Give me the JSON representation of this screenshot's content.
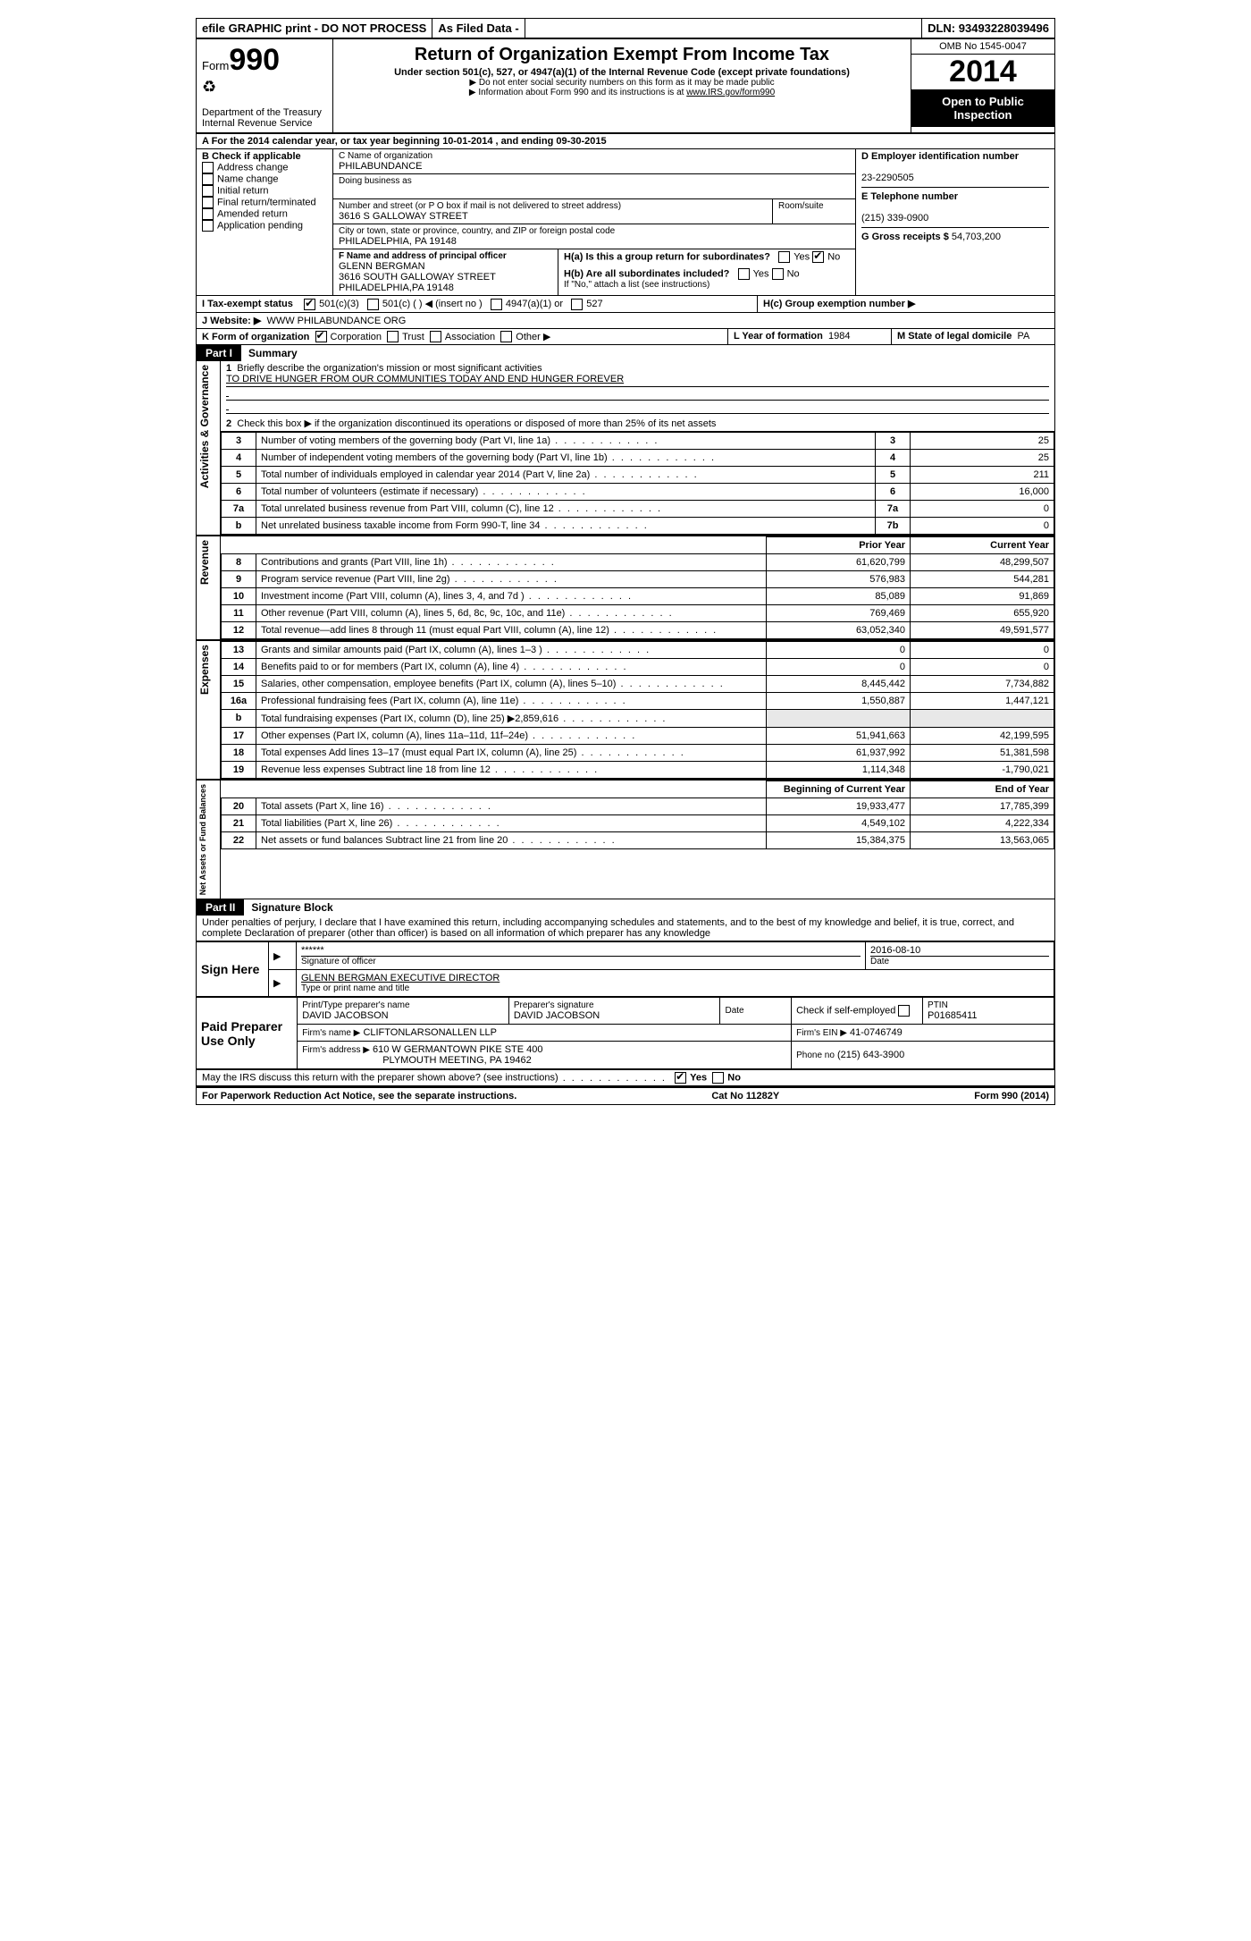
{
  "topbar": {
    "efile": "efile GRAPHIC print - DO NOT PROCESS",
    "asfiled": "As Filed Data -",
    "dln_label": "DLN:",
    "dln": "93493228039496"
  },
  "header": {
    "form_word": "Form",
    "form_num": "990",
    "dept1": "Department of the Treasury",
    "dept2": "Internal Revenue Service",
    "title": "Return of Organization Exempt From Income Tax",
    "sub": "Under section 501(c), 527, or 4947(a)(1) of the Internal Revenue Code (except private foundations)",
    "note1": "▶ Do not enter social security numbers on this form as it may be made public",
    "note2": "▶ Information about Form 990 and its instructions is at ",
    "link": "www.IRS.gov/form990",
    "omb": "OMB No 1545-0047",
    "year": "2014",
    "open": "Open to Public Inspection"
  },
  "secA": "A  For the 2014 calendar year, or tax year beginning 10-01-2014     , and ending 09-30-2015",
  "colB": {
    "title": "B  Check if applicable",
    "items": [
      "Address change",
      "Name change",
      "Initial return",
      "Final return/terminated",
      "Amended return",
      "Application pending"
    ]
  },
  "colC": {
    "name_label": "C Name of organization",
    "name": "PHILABUNDANCE",
    "dba_label": "Doing business as",
    "street_label": "Number and street (or P O  box if mail is not delivered to street address)",
    "room_label": "Room/suite",
    "street": "3616 S GALLOWAY STREET",
    "city_label": "City or town, state or province, country, and ZIP or foreign postal code",
    "city": "PHILADELPHIA, PA  19148",
    "f_label": "F   Name and address of principal officer",
    "f_name": "GLENN BERGMAN",
    "f_street": "3616 SOUTH GALLOWAY STREET",
    "f_city": "PHILADELPHIA,PA  19148"
  },
  "colD": {
    "ein_label": "D Employer identification number",
    "ein": "23-2290505",
    "phone_label": "E Telephone number",
    "phone": "(215) 339-0900",
    "gross_label": "G Gross receipts $",
    "gross": "54,703,200"
  },
  "secH": {
    "ha": "H(a)  Is this a group return for subordinates?",
    "hb": "H(b)  Are all subordinates included?",
    "hb_note": "If \"No,\" attach a list  (see instructions)",
    "hc": "H(c)   Group exemption number ▶",
    "yes": "Yes",
    "no": "No"
  },
  "secI": {
    "label": "I   Tax-exempt status",
    "opts": [
      "501(c)(3)",
      "501(c) (   ) ◀ (insert no )",
      "4947(a)(1) or",
      "527"
    ]
  },
  "secJ": {
    "label": "J   Website: ▶",
    "val": "WWW PHILABUNDANCE ORG"
  },
  "secK": {
    "label": "K Form of organization",
    "opts": [
      "Corporation",
      "Trust",
      "Association",
      "Other ▶"
    ],
    "l_label": "L Year of formation",
    "l_val": "1984",
    "m_label": "M State of legal domicile",
    "m_val": "PA"
  },
  "part1": {
    "hdr": "Part I",
    "title": "Summary",
    "line1": "Briefly describe the organization's mission or most significant activities",
    "mission": "TO DRIVE HUNGER FROM OUR COMMUNITIES TODAY AND END HUNGER FOREVER",
    "line2": "Check this box ▶      if the organization discontinued its operations or disposed of more than 25% of its net assets",
    "gov_side": "Activities & Governance",
    "rev_side": "Revenue",
    "exp_side": "Expenses",
    "net_side": "Net Assets or Fund Balances",
    "rows_gov": [
      {
        "n": "3",
        "t": "Number of voting members of the governing body (Part VI, line 1a)",
        "k": "3",
        "v": "25"
      },
      {
        "n": "4",
        "t": "Number of independent voting members of the governing body (Part VI, line 1b)",
        "k": "4",
        "v": "25"
      },
      {
        "n": "5",
        "t": "Total number of individuals employed in calendar year 2014 (Part V, line 2a)",
        "k": "5",
        "v": "211"
      },
      {
        "n": "6",
        "t": "Total number of volunteers (estimate if necessary)",
        "k": "6",
        "v": "16,000"
      },
      {
        "n": "7a",
        "t": "Total unrelated business revenue from Part VIII, column (C), line 12",
        "k": "7a",
        "v": "0"
      },
      {
        "n": "b",
        "t": "Net unrelated business taxable income from Form 990-T, line 34",
        "k": "7b",
        "v": "0"
      }
    ],
    "col_prior": "Prior Year",
    "col_current": "Current Year",
    "rows_rev": [
      {
        "n": "8",
        "t": "Contributions and grants (Part VIII, line 1h)",
        "p": "61,620,799",
        "c": "48,299,507"
      },
      {
        "n": "9",
        "t": "Program service revenue (Part VIII, line 2g)",
        "p": "576,983",
        "c": "544,281"
      },
      {
        "n": "10",
        "t": "Investment income (Part VIII, column (A), lines 3, 4, and 7d )",
        "p": "85,089",
        "c": "91,869"
      },
      {
        "n": "11",
        "t": "Other revenue (Part VIII, column (A), lines 5, 6d, 8c, 9c, 10c, and 11e)",
        "p": "769,469",
        "c": "655,920"
      },
      {
        "n": "12",
        "t": "Total revenue—add lines 8 through 11 (must equal Part VIII, column (A), line 12)",
        "p": "63,052,340",
        "c": "49,591,577"
      }
    ],
    "rows_exp": [
      {
        "n": "13",
        "t": "Grants and similar amounts paid (Part IX, column (A), lines 1–3 )",
        "p": "0",
        "c": "0"
      },
      {
        "n": "14",
        "t": "Benefits paid to or for members (Part IX, column (A), line 4)",
        "p": "0",
        "c": "0"
      },
      {
        "n": "15",
        "t": "Salaries, other compensation, employee benefits (Part IX, column (A), lines 5–10)",
        "p": "8,445,442",
        "c": "7,734,882"
      },
      {
        "n": "16a",
        "t": "Professional fundraising fees (Part IX, column (A), line 11e)",
        "p": "1,550,887",
        "c": "1,447,121"
      },
      {
        "n": "b",
        "t": "Total fundraising expenses (Part IX, column (D), line 25) ▶2,859,616",
        "p": "",
        "c": ""
      },
      {
        "n": "17",
        "t": "Other expenses (Part IX, column (A), lines 11a–11d, 11f–24e)",
        "p": "51,941,663",
        "c": "42,199,595"
      },
      {
        "n": "18",
        "t": "Total expenses  Add lines 13–17 (must equal Part IX, column (A), line 25)",
        "p": "61,937,992",
        "c": "51,381,598"
      },
      {
        "n": "19",
        "t": "Revenue less expenses  Subtract line 18 from line 12",
        "p": "1,114,348",
        "c": "-1,790,021"
      }
    ],
    "col_beg": "Beginning of Current Year",
    "col_end": "End of Year",
    "rows_net": [
      {
        "n": "20",
        "t": "Total assets (Part X, line 16)",
        "p": "19,933,477",
        "c": "17,785,399"
      },
      {
        "n": "21",
        "t": "Total liabilities (Part X, line 26)",
        "p": "4,549,102",
        "c": "4,222,334"
      },
      {
        "n": "22",
        "t": "Net assets or fund balances  Subtract line 21 from line 20",
        "p": "15,384,375",
        "c": "13,563,065"
      }
    ]
  },
  "part2": {
    "hdr": "Part II",
    "title": "Signature Block",
    "decl": "Under penalties of perjury, I declare that I have examined this return, including accompanying schedules and statements, and to the best of my knowledge and belief, it is true, correct, and complete  Declaration of preparer (other than officer) is based on all information of which preparer has any knowledge",
    "sign_here": "Sign Here",
    "sig_stars": "******",
    "sig_label": "Signature of officer",
    "sig_date": "2016-08-10",
    "date_label": "Date",
    "name_title": "GLENN BERGMAN  EXECUTIVE DIRECTOR",
    "name_label": "Type or print name and title",
    "paid": "Paid Preparer Use Only",
    "prep_name_label": "Print/Type preparer's name",
    "prep_name": "DAVID JACOBSON",
    "prep_sig_label": "Preparer's signature",
    "prep_sig": "DAVID JACOBSON",
    "prep_date_label": "Date",
    "self_emp": "Check       if self-employed",
    "ptin_label": "PTIN",
    "ptin": "P01685411",
    "firm_name_label": "Firm's name    ▶",
    "firm_name": "CLIFTONLARSONALLEN LLP",
    "firm_ein_label": "Firm's EIN ▶",
    "firm_ein": "41-0746749",
    "firm_addr_label": "Firm's address ▶",
    "firm_addr1": "610 W GERMANTOWN PIKE STE 400",
    "firm_addr2": "PLYMOUTH MEETING, PA  19462",
    "firm_phone_label": "Phone no",
    "firm_phone": "(215) 643-3900",
    "discuss": "May the IRS discuss this return with the preparer shown above? (see instructions)",
    "yes": "Yes",
    "no": "No"
  },
  "footer": {
    "left": "For Paperwork Reduction Act Notice, see the separate instructions.",
    "mid": "Cat No 11282Y",
    "right": "Form 990 (2014)"
  }
}
